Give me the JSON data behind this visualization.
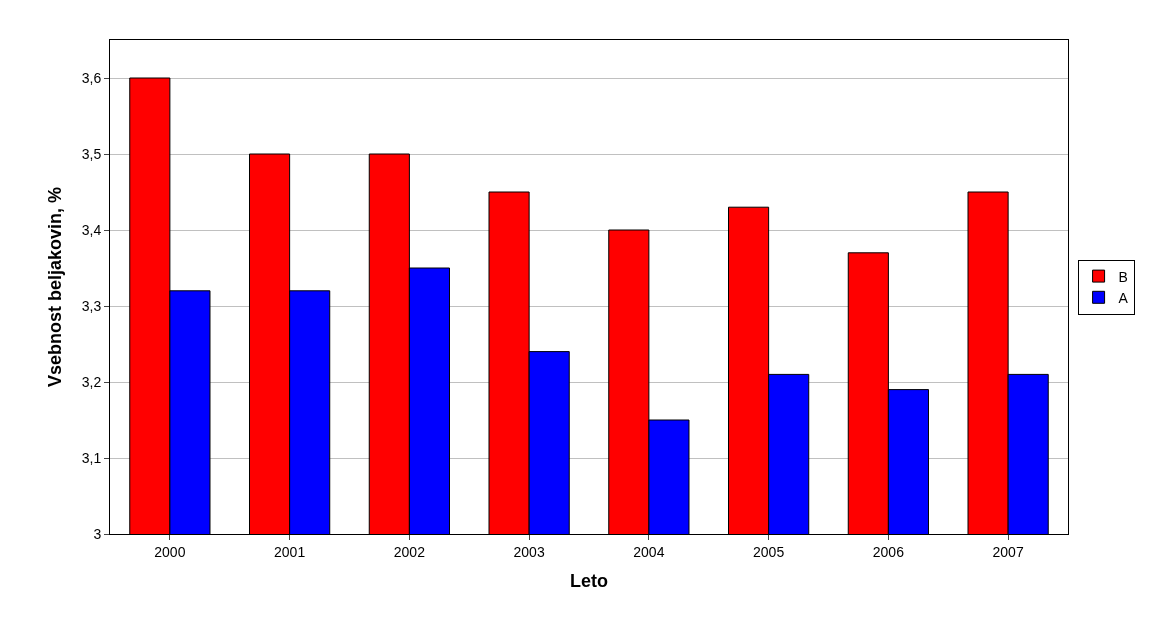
{
  "chart_data": {
    "type": "bar",
    "xlabel": "Leto",
    "ylabel": "Vsebnost beljakovin, %",
    "categories": [
      "2000",
      "2001",
      "2002",
      "2003",
      "2004",
      "2005",
      "2006",
      "2007"
    ],
    "series": [
      {
        "name": "B",
        "color": "#ff0000",
        "values": [
          3.6,
          3.5,
          3.5,
          3.45,
          3.4,
          3.43,
          3.37,
          3.45
        ]
      },
      {
        "name": "A",
        "color": "#0000ff",
        "values": [
          3.32,
          3.32,
          3.35,
          3.24,
          3.15,
          3.21,
          3.19,
          3.21
        ]
      }
    ],
    "ylim": [
      3,
      3.65
    ],
    "yticks": [
      {
        "value": 3,
        "label": "3"
      },
      {
        "value": 3.1,
        "label": "3,1"
      },
      {
        "value": 3.2,
        "label": "3,2"
      },
      {
        "value": 3.3,
        "label": "3,3"
      },
      {
        "value": 3.4,
        "label": "3,4"
      },
      {
        "value": 3.5,
        "label": "3,5"
      },
      {
        "value": 3.6,
        "label": "3,6"
      }
    ],
    "grid": "y",
    "legend": "right"
  }
}
